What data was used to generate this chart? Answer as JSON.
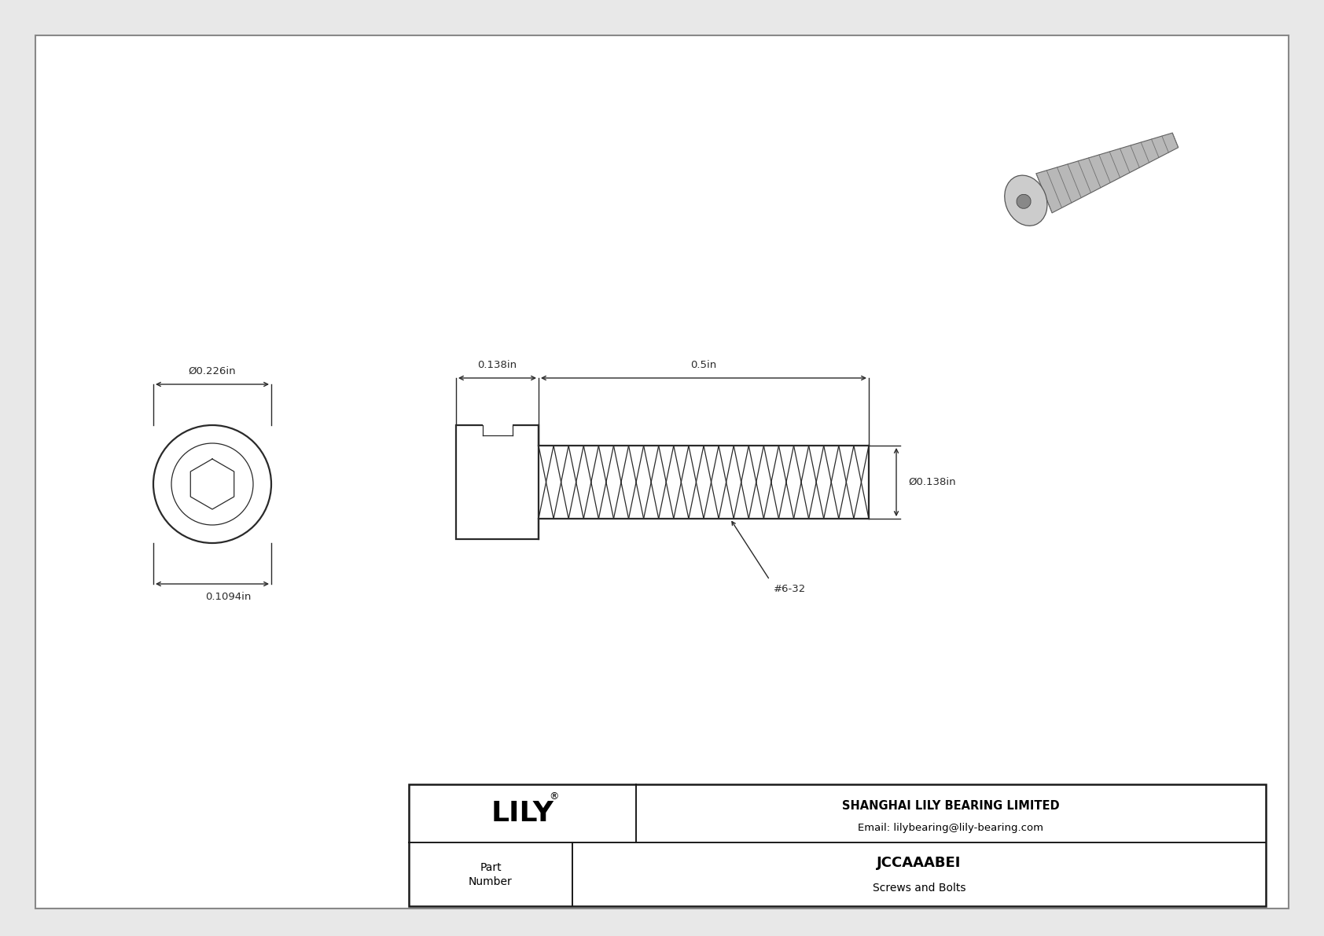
{
  "bg_color": "#e8e8e8",
  "drawing_bg": "#ffffff",
  "line_color": "#2a2a2a",
  "dim_color": "#2a2a2a",
  "title_company": "SHANGHAI LILY BEARING LIMITED",
  "title_email": "Email: lilybearing@lily-bearing.com",
  "part_number": "JCCAAABEI",
  "part_category": "Screws and Bolts",
  "brand": "LILY",
  "dim_head_diameter": "Ø0.226in",
  "dim_head_height": "0.1094in",
  "dim_shank_length": "0.5in",
  "dim_head_length": "0.138in",
  "dim_shank_diameter": "Ø0.138in",
  "thread_label": "#6-32",
  "fig_width": 16.84,
  "fig_height": 11.91
}
